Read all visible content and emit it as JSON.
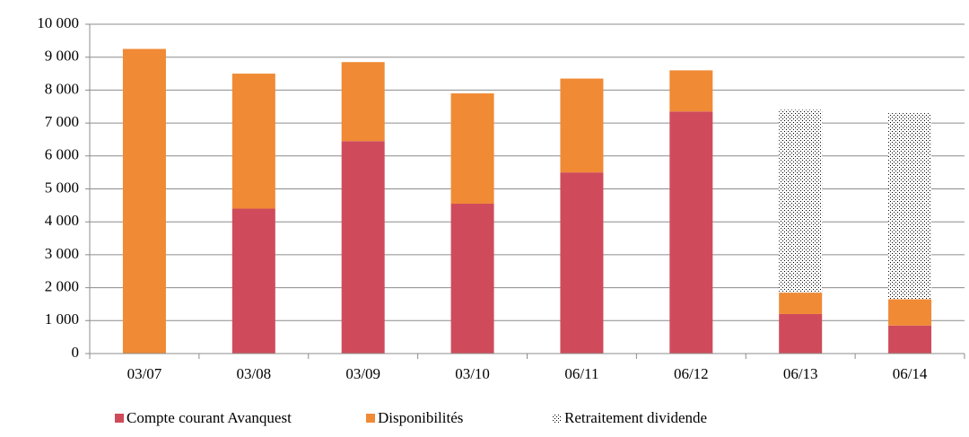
{
  "chart_data": {
    "type": "stacked-bar",
    "categories": [
      "03/07",
      "03/08",
      "03/09",
      "03/10",
      "06/11",
      "06/12",
      "06/13",
      "06/14"
    ],
    "series": [
      {
        "name": "Compte courant Avanquest",
        "color": "#cf4b5b",
        "values": [
          0,
          4400,
          6450,
          4550,
          5500,
          7350,
          1200,
          850
        ]
      },
      {
        "name": "Disponibilités",
        "color": "#f08a35",
        "values": [
          9250,
          4100,
          2400,
          3350,
          2850,
          1250,
          650,
          800
        ]
      },
      {
        "name": "Retraitement dividende",
        "color": "#000000",
        "pattern": "dots",
        "values": [
          0,
          0,
          0,
          0,
          0,
          0,
          5550,
          5650
        ]
      }
    ],
    "ylim": [
      0,
      10000
    ],
    "yticks": [
      0,
      {
        "value": 1000,
        "label": "1 000"
      },
      {
        "value": 2000,
        "label": "2 000"
      },
      {
        "value": 3000,
        "label": "3 000"
      },
      {
        "value": 4000,
        "label": "4 000"
      },
      {
        "value": 5000,
        "label": "5 000"
      },
      {
        "value": 6000,
        "label": "6 000"
      },
      {
        "value": 7000,
        "label": "7 000"
      },
      {
        "value": 8000,
        "label": "8 000"
      },
      {
        "value": 9000,
        "label": "9 000"
      },
      {
        "value": 10000,
        "label": "10 000"
      }
    ],
    "grid": true,
    "legend": "bottom"
  }
}
